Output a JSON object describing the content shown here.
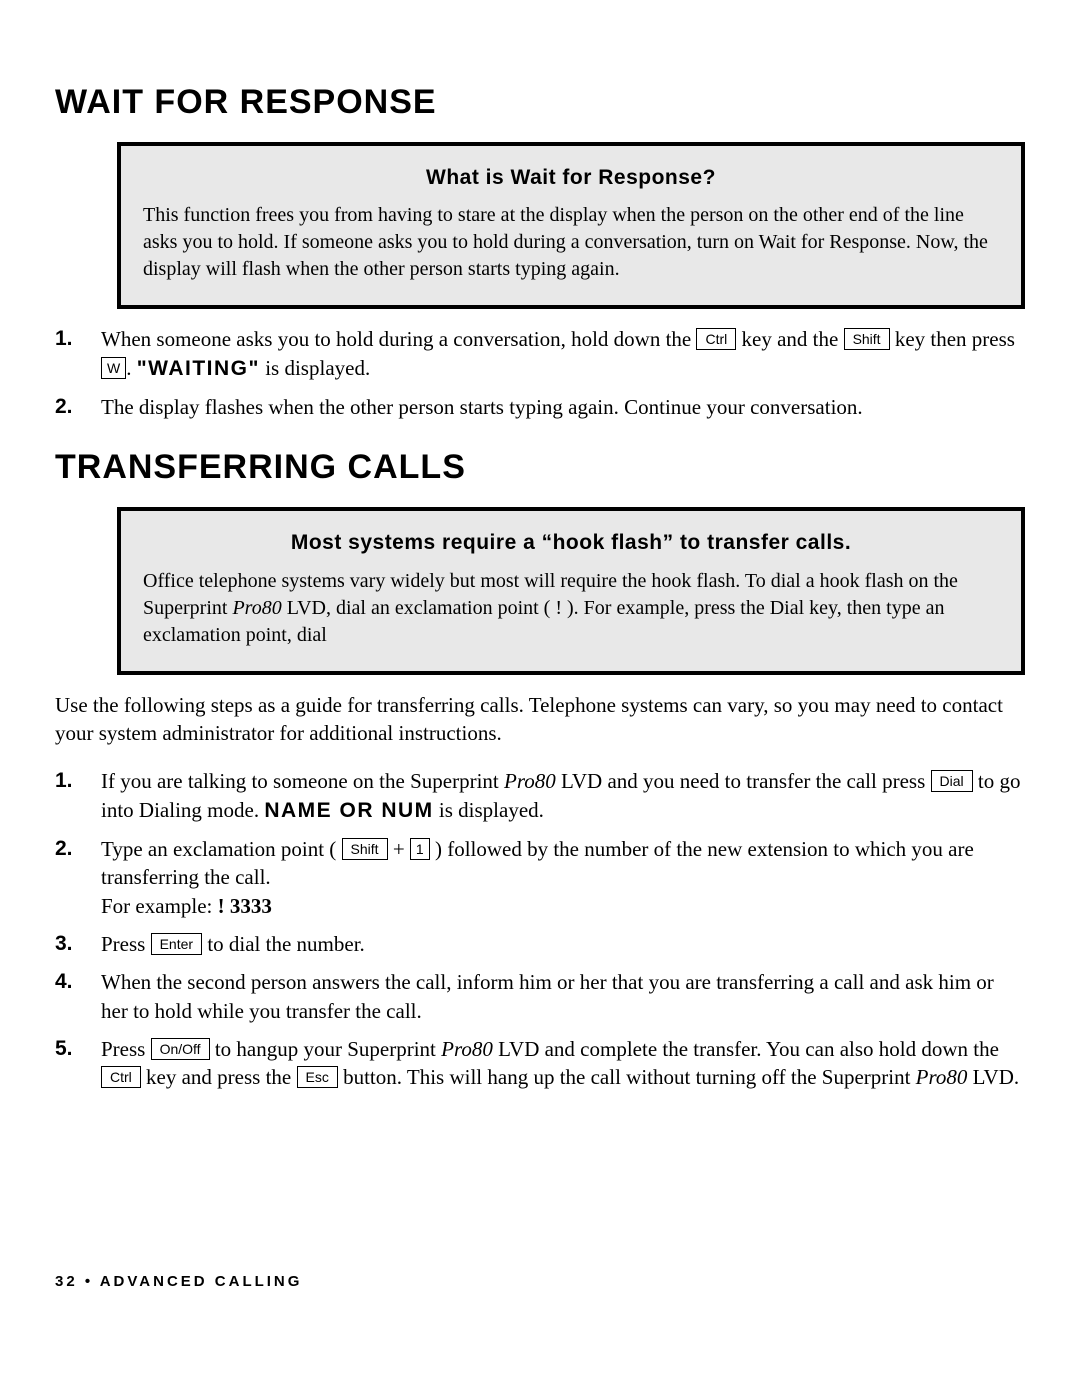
{
  "section1": {
    "heading": "WAIT FOR RESPONSE",
    "box": {
      "title": "What is Wait for Response?",
      "body": "This function frees you from having to stare at the display when the person on the other end of the line asks you to hold. If someone asks you to hold during a conversation, turn on Wait for Response. Now, the display will flash when the other person starts typing again."
    },
    "steps": [
      {
        "num": "1.",
        "pre": "When someone asks you to hold during a conversation, hold down the ",
        "key1": "Ctrl",
        "mid1": " key and the ",
        "key2": "Shift",
        "mid2": " key then press ",
        "key3": "W",
        "mid3": ". ",
        "lcd": "\"WAITING\"",
        "post": " is displayed."
      },
      {
        "num": "2.",
        "body": "The display flashes when the other person starts typing again. Continue your conversation."
      }
    ]
  },
  "section2": {
    "heading": "TRANSFERRING CALLS",
    "box": {
      "title": "Most systems require a “hook flash” to transfer calls.",
      "body_pre": "Office telephone systems vary widely but most will require the hook flash. To dial a hook flash on the Superprint ",
      "product": "Pro80",
      "body_post": " LVD, dial an exclamation point ( ! ). For example, press the Dial key, then type an exclamation point, dial"
    },
    "intro": "Use the following steps as a guide for transferring calls. Telephone systems can vary, so you may need to contact your system administrator for additional instructions.",
    "steps": {
      "s1": {
        "num": "1.",
        "a": "If you are talking to someone on the Superprint ",
        "prod": "Pro80",
        "b": " LVD and you need to transfer the call press ",
        "key": "Dial",
        "c": " to go into Dialing mode. ",
        "lcd": "NAME OR NUM",
        "d": " is displayed."
      },
      "s2": {
        "num": "2.",
        "a": "Type an exclamation point ( ",
        "key1": "Shift",
        "plus": " + ",
        "key2": "1",
        "b": " ) followed by the number of the new extension to which you are transferring the call.",
        "c": "For example: ",
        "ex": "! 3333"
      },
      "s3": {
        "num": "3.",
        "a": "Press ",
        "key": "Enter",
        "b": " to dial the number."
      },
      "s4": {
        "num": "4.",
        "body": "When the second person answers the call, inform him or her that you are transferring a call and ask him or her to hold while you transfer the call."
      },
      "s5": {
        "num": "5.",
        "a": "Press ",
        "key1": "On/Off",
        "b": " to hangup your Superprint ",
        "prod": "Pro80",
        "c": " LVD and complete the transfer. You can also hold down the ",
        "key2": "Ctrl",
        "d": " key and press the ",
        "key3": "Esc",
        "e": " button. This will hang up the call without turning off the Superprint ",
        "prod2": "Pro80",
        "f": " LVD."
      }
    }
  },
  "footer": {
    "page": "32",
    "bullet": " • ",
    "title": "ADVANCED CALLING"
  }
}
